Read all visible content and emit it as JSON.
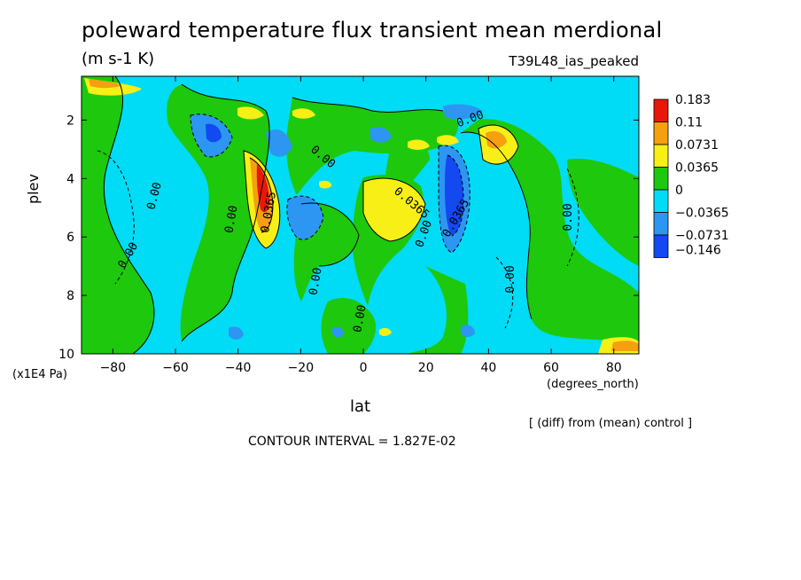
{
  "chart_data": {
    "type": "heatmap",
    "title": "poleward temperature flux transient mean merdional",
    "units": "(m s-1 K)",
    "run_label": "T39L48_ias_peaked",
    "xlabel": "lat",
    "xunit": "(degrees_north)",
    "ylabel": "plev",
    "yunit": "(x1E4 Pa)",
    "xlim": [
      -90,
      88
    ],
    "ylim": [
      10,
      0.5
    ],
    "xticks": [
      "-80",
      "-60",
      "-40",
      "-20",
      "0",
      "20",
      "40",
      "60",
      "80"
    ],
    "yticks": [
      "2",
      "4",
      "6",
      "8",
      "10"
    ],
    "legend_levels": [
      "0.183",
      "0.11",
      "0.0731",
      "0.0365",
      "0",
      "-0.0365",
      "-0.0731",
      "-0.146"
    ],
    "legend_colors": [
      "#e8170a",
      "#f4a010",
      "#f7ef15",
      "#1ec80c",
      "#00dcf5",
      "#2c96f2",
      "#1249f0"
    ],
    "note": "[ (diff) from (mean) control ]",
    "contour_interval": "CONTOUR INTERVAL = 1.827E-02",
    "contour_labels": [
      "0.00",
      "0.00",
      "0.00",
      "0.00",
      "0.00",
      "0.00",
      "0.00",
      "0.00",
      "0.00",
      "0.0365",
      "0.0365",
      "0.0365",
      "0.00"
    ],
    "features": [
      {
        "lat": -33,
        "plev": 3.8,
        "value": 0.183
      },
      {
        "lat": -32,
        "plev": 4.2,
        "value": 0.11
      },
      {
        "lat": -31,
        "plev": 4.6,
        "value": 0.0731
      },
      {
        "lat": 30,
        "plev": 4.2,
        "value": -0.146
      },
      {
        "lat": 30,
        "plev": 3.3,
        "value": -0.0731
      },
      {
        "lat": 45,
        "plev": 2.4,
        "value": 0.0731
      },
      {
        "lat": 12,
        "plev": 4.5,
        "value": 0.0365
      },
      {
        "lat": -45,
        "plev": 2.0,
        "value": -0.0731
      },
      {
        "lat": -20,
        "plev": 5.2,
        "value": -0.0731
      }
    ]
  }
}
